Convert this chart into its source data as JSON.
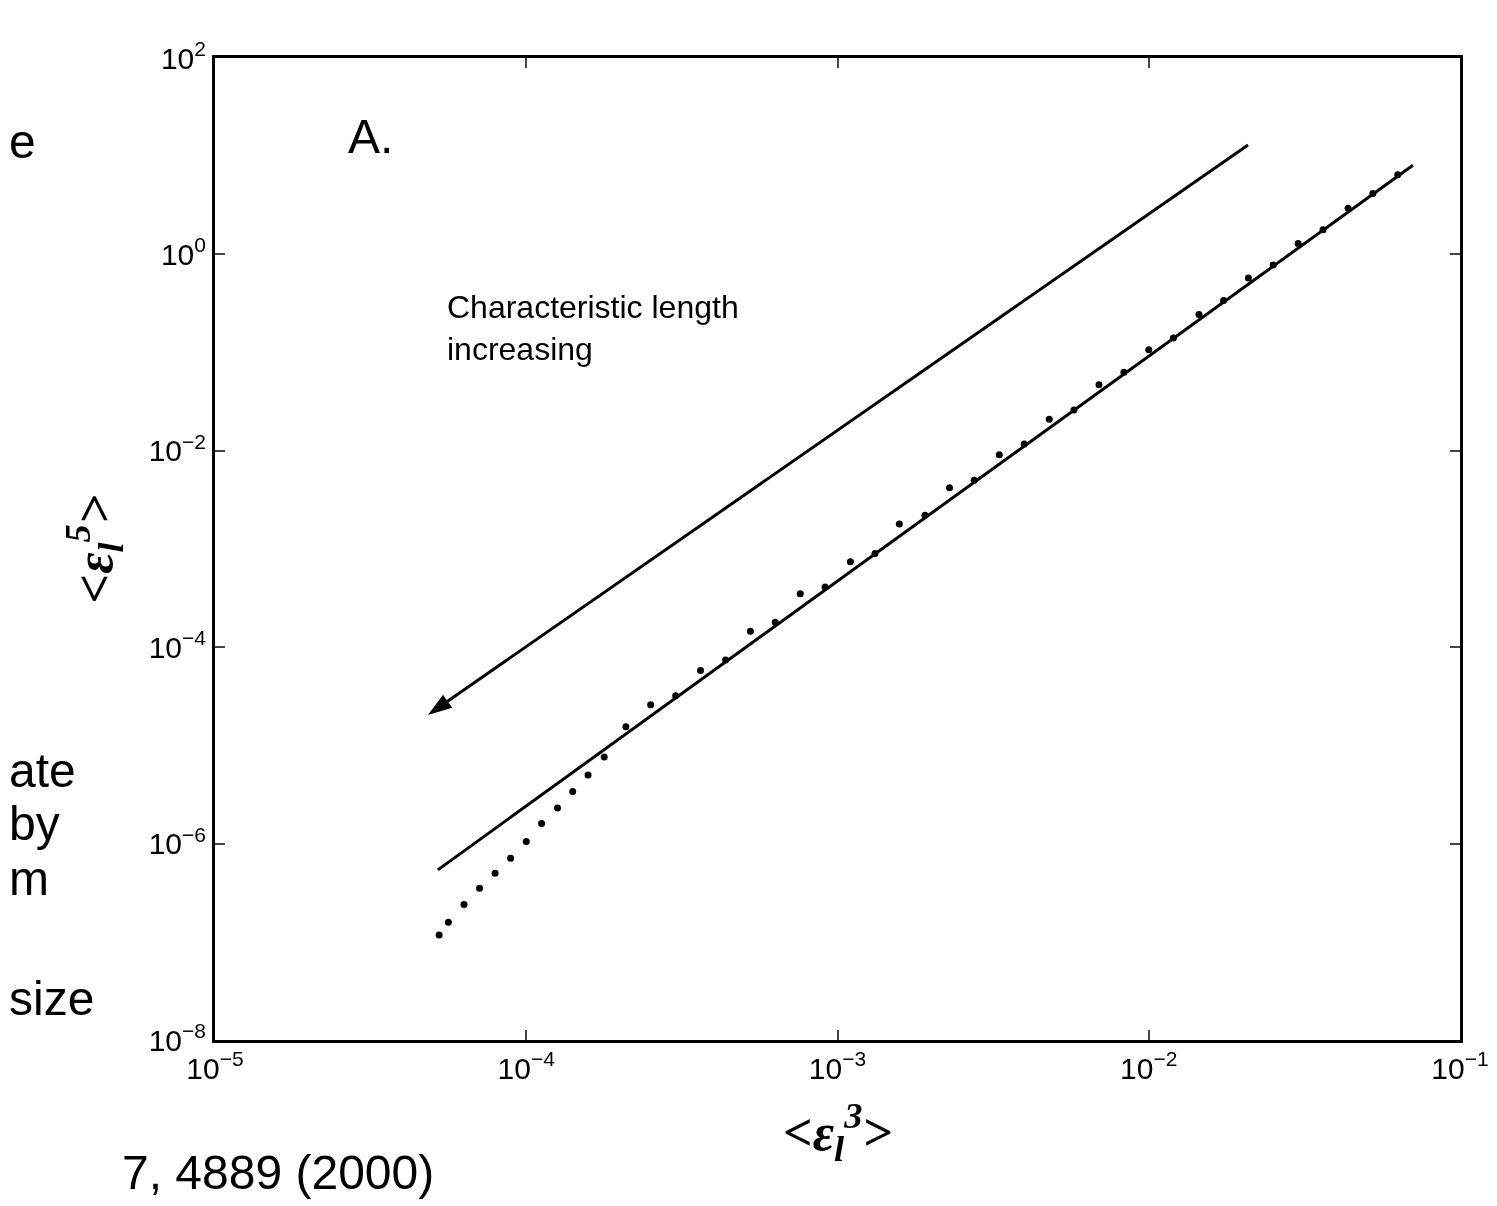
{
  "chart_data": {
    "type": "scatter",
    "xlabel": "<ε$_{l}$$^{3}$>",
    "ylabel": "<ε$_{l}$$^{5}$>",
    "annotations": [
      "A.",
      "Characteristic length\nincreasing",
      "e",
      "ate",
      "by",
      "m",
      "size",
      "7, 4889 (2000)"
    ],
    "log": "xy",
    "grid": false,
    "legend": false,
    "xlim": [
      1e-05,
      0.1
    ],
    "xticks": [
      {
        "value": 1e-05,
        "label": "10$^{−5}$"
      },
      {
        "value": 0.0001,
        "label": "10$^{−4}$"
      },
      {
        "value": 0.001,
        "label": "10$^{−3}$"
      },
      {
        "value": 0.01,
        "label": "10$^{−2}$"
      },
      {
        "value": 0.1,
        "label": "10$^{−1}$"
      }
    ],
    "ylim": [
      1e-08,
      100
    ],
    "yticks": [
      {
        "value": 1e-08,
        "label": "10$^{−8}$"
      },
      {
        "value": 1e-06,
        "label": "10$^{−6}$"
      },
      {
        "value": 0.0001,
        "label": "10$^{−4}$"
      },
      {
        "value": 0.01,
        "label": "10$^{−2}$"
      },
      {
        "value": 1,
        "label": "10$^{0}$"
      },
      {
        "value": 100,
        "label": "10$^{2}$"
      }
    ],
    "series": [
      {
        "marker": "circle",
        "color": "#000000",
        "x": [
          5.25e-05,
          5.62e-05,
          6.31e-05,
          7.08e-05,
          7.94e-05,
          8.91e-05,
          0.0001,
          0.000112,
          0.000126,
          0.000141,
          0.000158,
          0.000178,
          0.000209,
          0.000251,
          0.000302,
          0.000363,
          0.000437,
          0.000525,
          0.000631,
          0.000759,
          0.000912,
          0.0011,
          0.00132,
          0.00158,
          0.00191,
          0.00229,
          0.00275,
          0.00331,
          0.00398,
          0.00479,
          0.00575,
          0.00692,
          0.00832,
          0.01,
          0.012,
          0.0145,
          0.0174,
          0.0209,
          0.0251,
          0.0302,
          0.0363,
          0.0437,
          0.0525,
          0.0631
        ],
        "values": [
          1.17e-07,
          1.58e-07,
          2.4e-07,
          3.5e-07,
          5e-07,
          7.1e-07,
          1.05e-06,
          1.6e-06,
          2.3e-06,
          3.4e-06,
          5e-06,
          7.6e-06,
          1.55e-05,
          2.6e-05,
          3.2e-05,
          5.8e-05,
          7.4e-05,
          0.000145,
          0.00018,
          0.00035,
          0.00041,
          0.00074,
          0.0009,
          0.0018,
          0.0022,
          0.0042,
          0.005,
          0.0091,
          0.0117,
          0.021,
          0.026,
          0.047,
          0.063,
          0.107,
          0.141,
          0.245,
          0.339,
          0.575,
          0.78,
          1.29,
          1.78,
          2.95,
          4.17,
          6.46
        ]
      },
      {
        "type": "line",
        "marker": "none",
        "line_style": "solid",
        "color": "#000000",
        "x": [
          5.2e-05,
          0.0706
        ],
        "values": [
          5.4e-07,
          8.1
        ]
      }
    ]
  }
}
